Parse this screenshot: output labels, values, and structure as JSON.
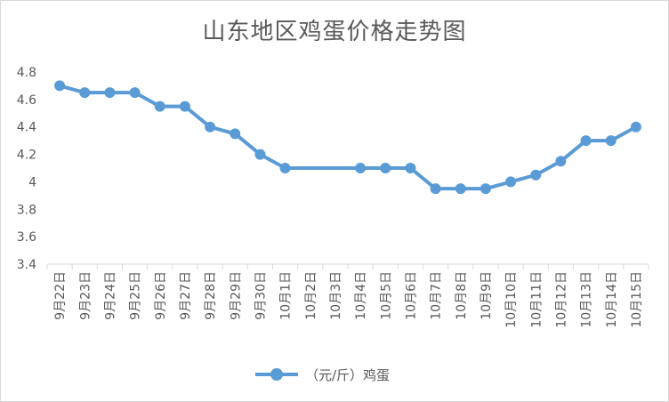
{
  "chart_data": {
    "type": "line",
    "title": "山东地区鸡蛋价格走势图",
    "categories": [
      "9月22日",
      "9月23日",
      "9月24日",
      "9月25日",
      "9月26日",
      "9月27日",
      "9月28日",
      "9月29日",
      "9月30日",
      "10月1日",
      "10月2日",
      "10月3日",
      "10月4日",
      "10月5日",
      "10月6日",
      "10月7日",
      "10月8日",
      "10月9日",
      "10月10日",
      "10月11日",
      "10月12日",
      "10月13日",
      "10月14日",
      "10月15日"
    ],
    "series": [
      {
        "name": "（元/斤）鸡蛋",
        "color": "#5b9bd5",
        "values": [
          4.7,
          4.65,
          4.65,
          4.65,
          4.55,
          4.55,
          4.4,
          4.35,
          4.2,
          4.1,
          4.1,
          4.1,
          4.1,
          4.1,
          4.1,
          3.95,
          3.95,
          3.95,
          4.0,
          4.05,
          4.15,
          4.3,
          4.3,
          4.4
        ],
        "missing_markers": [
          10,
          11
        ]
      }
    ],
    "ylim": [
      3.4,
      4.8
    ],
    "yticks": [
      "3.4",
      "3.6",
      "3.8",
      "4",
      "4.2",
      "4.4",
      "4.6",
      "4.8"
    ],
    "xlabel": "",
    "ylabel": "",
    "grid": false,
    "legend": "bottom"
  }
}
